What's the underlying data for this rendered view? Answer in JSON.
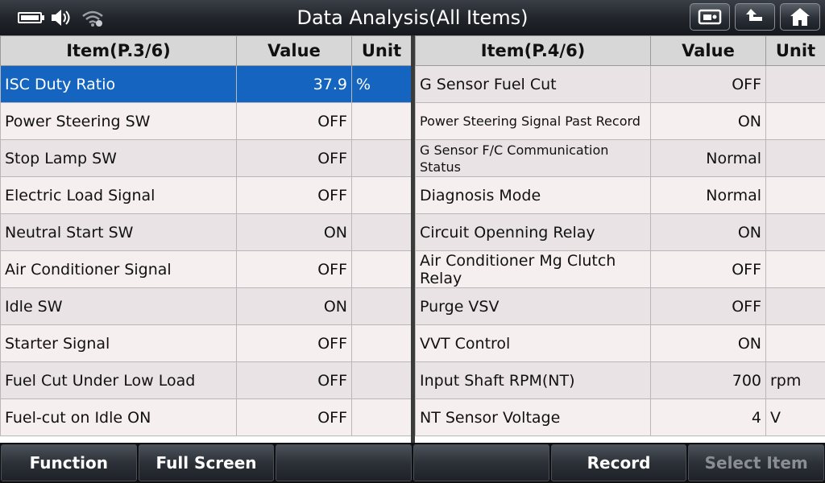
{
  "header": {
    "title": "Data Analysis(All Items)"
  },
  "left_table": {
    "headers": {
      "item": "Item(P.3/6)",
      "value": "Value",
      "unit": "Unit"
    },
    "rows": [
      {
        "item": "ISC Duty Ratio",
        "value": "37.9",
        "unit": "%"
      },
      {
        "item": "Power Steering SW",
        "value": "OFF",
        "unit": ""
      },
      {
        "item": "Stop Lamp SW",
        "value": "OFF",
        "unit": ""
      },
      {
        "item": "Electric Load Signal",
        "value": "OFF",
        "unit": ""
      },
      {
        "item": "Neutral Start SW",
        "value": "ON",
        "unit": ""
      },
      {
        "item": "Air Conditioner Signal",
        "value": "OFF",
        "unit": ""
      },
      {
        "item": "Idle SW",
        "value": "ON",
        "unit": ""
      },
      {
        "item": "Starter Signal",
        "value": "OFF",
        "unit": ""
      },
      {
        "item": "Fuel Cut Under Low Load",
        "value": "OFF",
        "unit": ""
      },
      {
        "item": "Fuel-cut on Idle ON",
        "value": "OFF",
        "unit": ""
      }
    ]
  },
  "right_table": {
    "headers": {
      "item": "Item(P.4/6)",
      "value": "Value",
      "unit": "Unit"
    },
    "rows": [
      {
        "item": "G Sensor Fuel Cut",
        "value": "OFF",
        "unit": ""
      },
      {
        "item": "Power Steering Signal Past Record",
        "value": "ON",
        "unit": ""
      },
      {
        "item": "G Sensor F/C Communication Status",
        "value": "Normal",
        "unit": ""
      },
      {
        "item": "Diagnosis Mode",
        "value": "Normal",
        "unit": ""
      },
      {
        "item": "Circuit Openning Relay",
        "value": "ON",
        "unit": ""
      },
      {
        "item": "Air Conditioner Mg Clutch Relay",
        "value": "OFF",
        "unit": ""
      },
      {
        "item": "Purge VSV",
        "value": "OFF",
        "unit": ""
      },
      {
        "item": "VVT Control",
        "value": "ON",
        "unit": ""
      },
      {
        "item": "Input Shaft RPM(NT)",
        "value": "700",
        "unit": "rpm"
      },
      {
        "item": "NT Sensor Voltage",
        "value": "4",
        "unit": "V"
      }
    ]
  },
  "footer": {
    "function_label": "Function",
    "fullscreen_label": "Full Screen",
    "blank1_label": "",
    "blank2_label": "",
    "record_label": "Record",
    "select_item_label": "Select Item"
  },
  "colors": {
    "selected_row": "#1565c0",
    "title_text": "#ffffff",
    "disabled_text": "#8a8e94"
  },
  "icons": [
    "battery-icon",
    "speaker-icon",
    "wifi-icon",
    "screenshot-icon",
    "back-icon",
    "home-icon"
  ]
}
